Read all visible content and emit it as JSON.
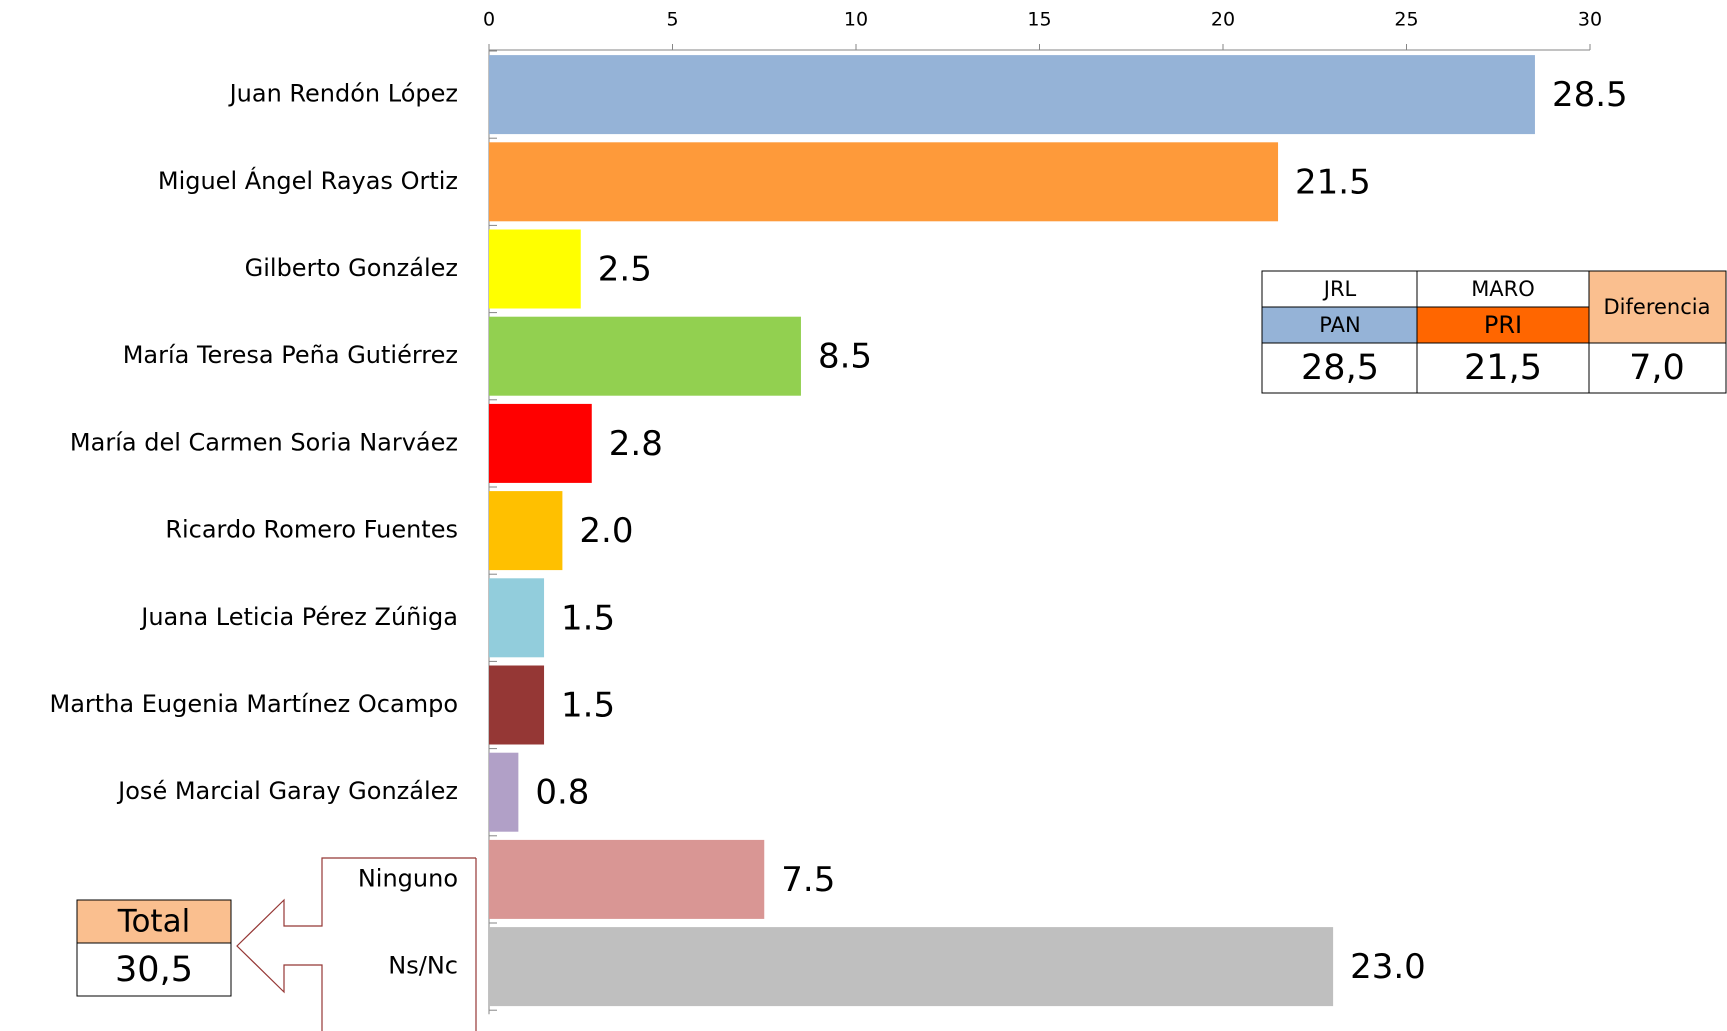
{
  "chart_data": {
    "type": "bar",
    "orientation": "horizontal",
    "categories": [
      "Juan Rendón López",
      "Miguel Ángel Rayas Ortiz",
      "Gilberto González",
      "María Teresa Peña Gutiérrez",
      "María del Carmen Soria Narváez",
      "Ricardo Romero Fuentes",
      "Juana Leticia Pérez Zúñiga",
      "Martha Eugenia Martínez Ocampo",
      "José Marcial Garay González",
      "Ninguno",
      "Ns/Nc"
    ],
    "values": [
      28.5,
      21.5,
      2.5,
      8.5,
      2.8,
      2.0,
      1.5,
      1.5,
      0.8,
      7.5,
      23.0
    ],
    "value_labels": [
      "28.5",
      "21.5",
      "2.5",
      "8.5",
      "2.8",
      "2.0",
      "1.5",
      "1.5",
      "0.8",
      "7.5",
      "23.0"
    ],
    "colors": [
      "#95b3d7",
      "#fe9a3a",
      "#ffff00",
      "#92d050",
      "#ff0000",
      "#ffc000",
      "#92cddc",
      "#953735",
      "#b1a0c7",
      "#d99694",
      "#bfbfbf"
    ],
    "xlim": [
      0,
      30
    ],
    "xticks": [
      0,
      5,
      10,
      15,
      20,
      25,
      30
    ],
    "grid": false
  },
  "table": {
    "header": [
      "JRL",
      "MARO",
      "Diferencia"
    ],
    "parties": [
      "PAN",
      "PRI"
    ],
    "values": [
      "28,5",
      "21,5",
      "7,0"
    ]
  },
  "total": {
    "label": "Total",
    "value": "30,5"
  }
}
